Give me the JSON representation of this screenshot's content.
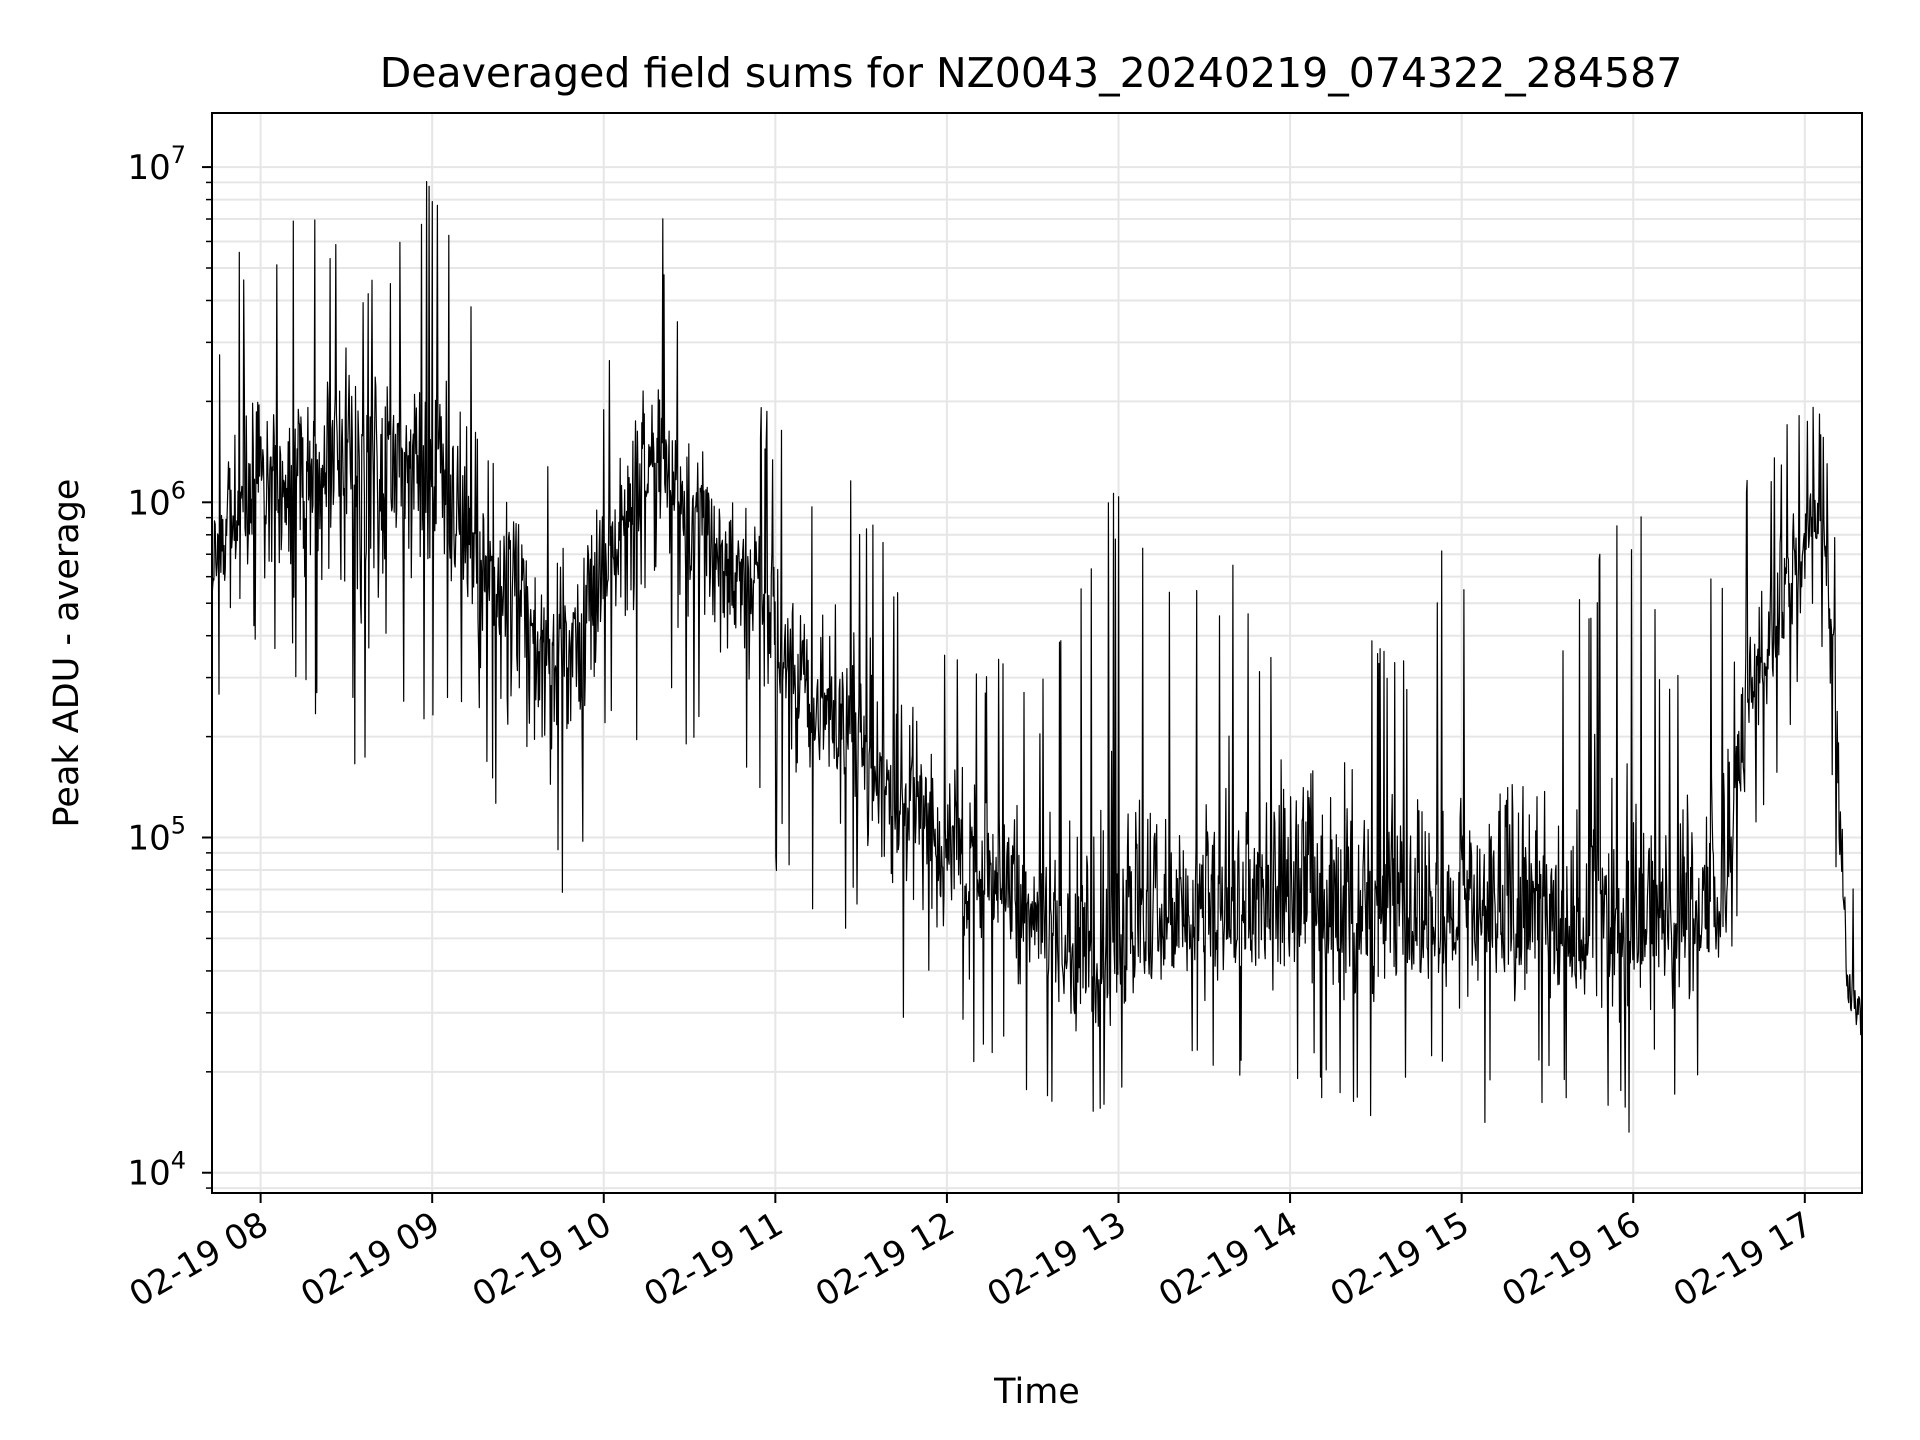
{
  "chart_data": {
    "type": "line",
    "title": "Deaveraged field sums for NZ0043_20240219_074322_284587",
    "xlabel": "Time",
    "ylabel": "Peak ADU - average",
    "yscale": "log",
    "ylim": [
      8700,
      14500000
    ],
    "xlim": [
      "2024-02-19 07:43",
      "2024-02-19 17:20"
    ],
    "grid": true,
    "colors": {
      "line": "#000000",
      "grid": "#e6e6e6",
      "axes": "#000000"
    },
    "x_ticks": [
      {
        "label": "02-19 08",
        "value": "2024-02-19 08:00"
      },
      {
        "label": "02-19 09",
        "value": "2024-02-19 09:00"
      },
      {
        "label": "02-19 10",
        "value": "2024-02-19 10:00"
      },
      {
        "label": "02-19 11",
        "value": "2024-02-19 11:00"
      },
      {
        "label": "02-19 12",
        "value": "2024-02-19 12:00"
      },
      {
        "label": "02-19 13",
        "value": "2024-02-19 13:00"
      },
      {
        "label": "02-19 14",
        "value": "2024-02-19 14:00"
      },
      {
        "label": "02-19 15",
        "value": "2024-02-19 15:00"
      },
      {
        "label": "02-19 16",
        "value": "2024-02-19 16:00"
      },
      {
        "label": "02-19 17",
        "value": "2024-02-19 17:00"
      }
    ],
    "y_ticks": [
      {
        "base": "10",
        "exp": "4",
        "value": 10000
      },
      {
        "base": "10",
        "exp": "5",
        "value": 100000
      },
      {
        "base": "10",
        "exp": "6",
        "value": 1000000
      },
      {
        "base": "10",
        "exp": "7",
        "value": 10000000
      }
    ],
    "series": [
      {
        "x": [
          "2024-02-19 07:43",
          "2024-02-19 07:50",
          "2024-02-19 08:00",
          "2024-02-19 08:10",
          "2024-02-19 08:20",
          "2024-02-19 08:30",
          "2024-02-19 08:40",
          "2024-02-19 08:50",
          "2024-02-19 09:00",
          "2024-02-19 09:10",
          "2024-02-19 09:20",
          "2024-02-19 09:30",
          "2024-02-19 09:40",
          "2024-02-19 09:50",
          "2024-02-19 10:00",
          "2024-02-19 10:10",
          "2024-02-19 10:20",
          "2024-02-19 10:30",
          "2024-02-19 10:40",
          "2024-02-19 10:50",
          "2024-02-19 11:00",
          "2024-02-19 11:10",
          "2024-02-19 11:20",
          "2024-02-19 11:30",
          "2024-02-19 11:40",
          "2024-02-19 11:50",
          "2024-02-19 12:00",
          "2024-02-19 12:10",
          "2024-02-19 12:20",
          "2024-02-19 12:30",
          "2024-02-19 12:40",
          "2024-02-19 12:50",
          "2024-02-19 13:00",
          "2024-02-19 13:10",
          "2024-02-19 13:20",
          "2024-02-19 13:30",
          "2024-02-19 13:40",
          "2024-02-19 13:50",
          "2024-02-19 14:00",
          "2024-02-19 14:10",
          "2024-02-19 14:20",
          "2024-02-19 14:30",
          "2024-02-19 14:40",
          "2024-02-19 14:50",
          "2024-02-19 15:00",
          "2024-02-19 15:10",
          "2024-02-19 15:20",
          "2024-02-19 15:30",
          "2024-02-19 15:40",
          "2024-02-19 15:50",
          "2024-02-19 16:00",
          "2024-02-19 16:10",
          "2024-02-19 16:20",
          "2024-02-19 16:30",
          "2024-02-19 16:40",
          "2024-02-19 16:50",
          "2024-02-19 17:00",
          "2024-02-19 17:05",
          "2024-02-19 17:10",
          "2024-02-19 17:15",
          "2024-02-19 17:20"
        ],
        "y": [
          700000,
          900000,
          1200000,
          1000000,
          1300000,
          1500000,
          1400000,
          1300000,
          1200000,
          900000,
          600000,
          450000,
          350000,
          400000,
          700000,
          1000000,
          1300000,
          1000000,
          700000,
          600000,
          450000,
          280000,
          220000,
          180000,
          140000,
          110000,
          90000,
          80000,
          70000,
          55000,
          45000,
          40000,
          45000,
          50000,
          55000,
          55000,
          60000,
          60000,
          65000,
          65000,
          60000,
          60000,
          55000,
          60000,
          60000,
          60000,
          55000,
          55000,
          50000,
          50000,
          50000,
          55000,
          60000,
          60000,
          250000,
          450000,
          800000,
          1000000,
          400000,
          35000,
          28000
        ],
        "upper": [
          2000000,
          5500000,
          6000000,
          7000000,
          7500000,
          5500000,
          5000000,
          7000000,
          10000000,
          6500000,
          4000000,
          2500000,
          1500000,
          2000000,
          2500000,
          5000000,
          7500000,
          3500000,
          2500000,
          2200000,
          1800000,
          1200000,
          2000000,
          900000,
          800000,
          600000,
          400000,
          400000,
          350000,
          280000,
          400000,
          1000000,
          1100000,
          900000,
          800000,
          550000,
          1000000,
          450000,
          1000000,
          500000,
          600000,
          500000,
          450000,
          650000,
          900000,
          550000,
          1000000,
          500000,
          600000,
          1200000,
          1300000,
          400000,
          600000,
          1000000,
          1200000,
          1500000,
          2200000,
          2000000,
          1200000,
          100000,
          45000
        ],
        "lower": [
          300000,
          200000,
          350000,
          280000,
          200000,
          150000,
          70000,
          150000,
          200000,
          180000,
          150000,
          60000,
          55000,
          50000,
          150000,
          180000,
          200000,
          130000,
          180000,
          120000,
          80000,
          60000,
          55000,
          45000,
          25000,
          30000,
          25000,
          20000,
          25000,
          12000,
          18000,
          15000,
          15000,
          18000,
          20000,
          20000,
          20000,
          18000,
          17000,
          16000,
          15000,
          14000,
          16000,
          18000,
          14000,
          14000,
          15000,
          15000,
          16000,
          14000,
          12500,
          13000,
          15000,
          18000,
          90000,
          150000,
          300000,
          500000,
          100000,
          20000,
          17000
        ],
        "noise": "dense high-frequency fluctuation between the lower and upper envelopes"
      }
    ]
  }
}
